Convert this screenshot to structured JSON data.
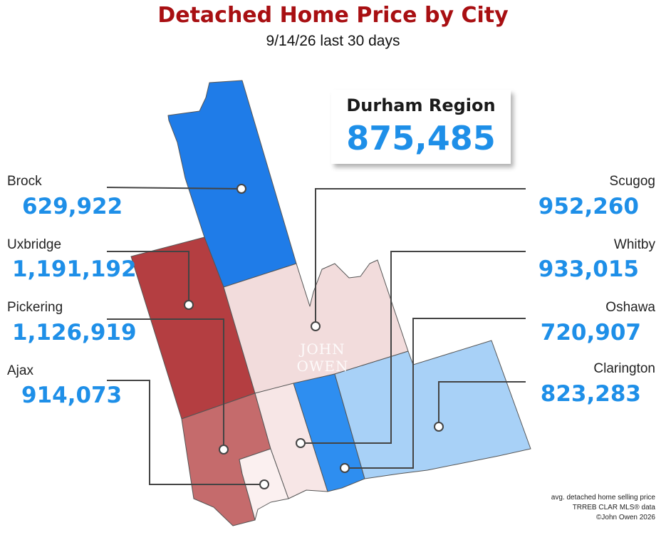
{
  "title": "Detached Home Price by City",
  "subtitle": "9/14/26  last 30 days",
  "summary": {
    "region": "Durham Region",
    "value": "875,485"
  },
  "cities": [
    {
      "id": "brock",
      "name": "Brock",
      "value": "629,922",
      "color": "#1f7ce8"
    },
    {
      "id": "uxbridge",
      "name": "Uxbridge",
      "value": "1,191,192",
      "color": "#b43e41"
    },
    {
      "id": "pickering",
      "name": "Pickering",
      "value": "1,126,919",
      "color": "#c56b6c"
    },
    {
      "id": "ajax",
      "name": "Ajax",
      "value": "914,073",
      "color": "#fbf0f0"
    },
    {
      "id": "scugog",
      "name": "Scugog",
      "value": "952,260",
      "color": "#f2dcdc"
    },
    {
      "id": "whitby",
      "name": "Whitby",
      "value": "933,015",
      "color": "#f7e6e6"
    },
    {
      "id": "oshawa",
      "name": "Oshawa",
      "value": "720,907",
      "color": "#2e8ef0"
    },
    {
      "id": "clarington",
      "name": "Clarington",
      "value": "823,283",
      "color": "#a8d1f7"
    }
  ],
  "watermark": "JOHN OWEN",
  "notes": [
    "avg. detached home selling price",
    "TRREB CLAR MLS® data",
    "©John Owen 2026"
  ]
}
